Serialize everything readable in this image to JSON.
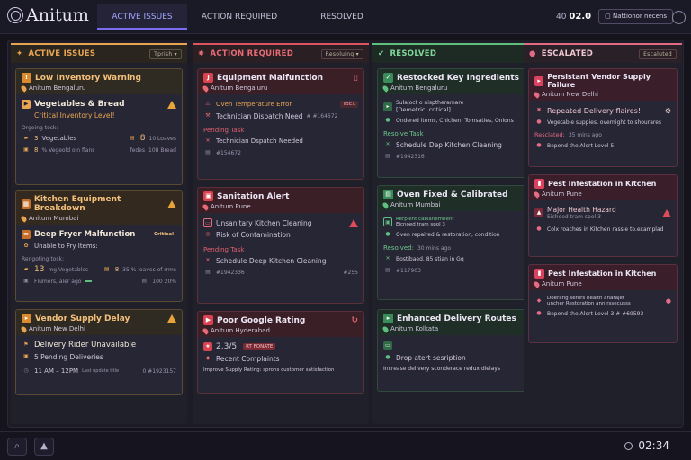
{
  "app": {
    "title": "Anitum"
  },
  "tabs": [
    {
      "label": "ACTIVE ISSUES"
    },
    {
      "label": "ACTION REQUIRED"
    },
    {
      "label": "RESOLVED"
    }
  ],
  "header": {
    "time_prefix": "40",
    "time": "02.0",
    "notif_label": "Nattionor necens"
  },
  "colors": {
    "orange": "#e8a453",
    "red": "#e0545f",
    "green": "#5fbf7f",
    "pink": "#e36b85",
    "accent": "#7b6cf0"
  },
  "columns": [
    {
      "title": "ACTIVE ISSUES",
      "select": "Tprish",
      "cards": [
        {
          "title": "Low Inventory Warning",
          "location": "Anitum Bengaluru",
          "main": "Vegetables & Bread",
          "alert": "Critical Inventory Level!",
          "ongoing_label": "Orgoing tosk:",
          "item1_qty": "3",
          "item1_name": "Vegetables",
          "item2_qty": "8",
          "item2_name": "10 Loaves",
          "item3_qty": "8",
          "item3_name": "% Vegeold oin flans",
          "item4_name": "fedes",
          "item4_val": "108 Bread"
        },
        {
          "title": "Kitchen Equipment Breakdown",
          "location": "Anitum Mumbai",
          "main": "Deep Fryer Malfunction",
          "badge": "Critical",
          "sub": "Unable to Fry Items:",
          "resp_label": "Rengoting tosk:",
          "item1_qty": "13",
          "item1_name": "mg Vegetables",
          "item2_qty": "8",
          "item2_name": "35 % loaves of rrms",
          "item3_name": "Flumers, aler ago",
          "item4_val": "100 20%"
        },
        {
          "title": "Vendor Supply Delay",
          "location": "Anitum New Delhi",
          "main": "Delivery Rider Unavailable",
          "sub": "5 Pending Deliveries",
          "time": "11 AM – 12PM",
          "update": "Last update title",
          "ref": "0 #1923157"
        }
      ]
    },
    {
      "title": "ACTION REQUIRED",
      "select": "Resoluing",
      "cards": [
        {
          "title": "Equipment Malfunction",
          "location": "Anitum Bengaluru",
          "line1": "Oven Temperature Error",
          "badge": "TBEX",
          "line2": "Technician Dispatch Need",
          "ref": "# #164672",
          "pending": "Pending Task",
          "task": "Technician Dspatch Needed",
          "task_ref": "#154672"
        },
        {
          "title": "Sanitation Alert",
          "location": "Anitum Pune",
          "line1": "Unsanitary Kitchen Cleaning",
          "line2": "Risk of Contamination",
          "pending": "Pending Task",
          "task": "Schedule Deep Kitchen Cleaning",
          "task_ref": "#1942336",
          "ref2": "#255"
        },
        {
          "title": "Poor Google Rating",
          "location": "Anitum Hyderabad",
          "rating": "2.3/5",
          "rating_tag": "RT FONATE",
          "line1": "Recent Complaints",
          "line2": "Improve Supply Rating: sprons customer satisfaction"
        }
      ]
    },
    {
      "title": "RESOLVED",
      "cards": [
        {
          "title": "Restocked Key Ingredients",
          "location": "Anitum Bengaluru",
          "sub1": "Sulajoct o nisptheramare",
          "sub2": "[Demetric, critical]",
          "line": "Ondered items, Chichen, Tomsaties, Onions",
          "task_label": "Resolve Task",
          "task": "Schedule Dep Kitchen Cleaning",
          "task_ref": "#1942316"
        },
        {
          "title": "Oven Fixed & Calibrated",
          "location": "Anitum Mumbai",
          "sub1": "Rerpient cablanemnent",
          "sub2": "Eicnoed tram spol 3",
          "line": "Oven repaired & restoration, condition",
          "resolved": "Resolved:",
          "resolved_time": "30 mins ago",
          "line2": "Bostibaed. 85 stian in Gq",
          "ref": "#117903"
        },
        {
          "title": "Enhanced Delivery Routes",
          "location": "Anitum Kolkata",
          "line1": "Drop atert sesription",
          "line2": "Increase delivery sconderace redux dielays"
        }
      ]
    },
    {
      "title": "ESCALATED",
      "select": "Escaluted",
      "cards": [
        {
          "title": "Persistant Vendor Supply Failure",
          "location": "Anitum New Delhi",
          "main": "Repeated Delivery flaires!",
          "line": "Vegetable suppies, overnight to shourares",
          "esc_label": "Resclated:",
          "esc_time": "35 mins ago",
          "line2": "Bepond the Alert Level 5"
        },
        {
          "title": "Pest Infestation in Kitchen",
          "location": "Anitum Pune",
          "main": "Major Health Hazard",
          "sub": "Eichoed tram spol 3",
          "line": "Colx roaches in Kitchen rassie to.examplad"
        },
        {
          "title": "Pest Infestation in Kitchen",
          "location": "Anitum Pune",
          "line1": "Doerang serors health aharajet",
          "line1b": "uncher Restoration ann rssecusss",
          "line2": "Bepond the Alert Level 3 # #69593"
        }
      ]
    }
  ],
  "bottom": {
    "clock": "02:34"
  }
}
